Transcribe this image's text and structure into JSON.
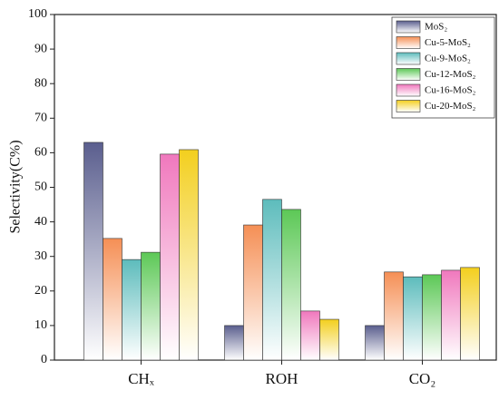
{
  "chart_data": {
    "type": "bar",
    "y_label": "Selectivity(C%)",
    "categories": [
      "CHₓ",
      "ROH",
      "CO₂"
    ],
    "series": [
      {
        "name": "MoS₂",
        "color": "#5a5e8e",
        "values": [
          63,
          10,
          10
        ]
      },
      {
        "name": "Cu-5-MoS₂",
        "color": "#f58f55",
        "values": [
          35.2,
          39.1,
          25.5
        ]
      },
      {
        "name": "Cu-9-MoS₂",
        "color": "#5dbcbc",
        "values": [
          29.1,
          46.5,
          24.1
        ]
      },
      {
        "name": "Cu-12-MoS₂",
        "color": "#5cc856",
        "values": [
          31.2,
          43.6,
          24.7
        ]
      },
      {
        "name": "Cu-16-MoS₂",
        "color": "#f078bd",
        "values": [
          59.6,
          14.2,
          26
        ]
      },
      {
        "name": "Cu-20-MoS₂",
        "color": "#f3cf1e",
        "values": [
          60.9,
          11.8,
          26.8
        ]
      }
    ],
    "ylim": [
      0,
      100
    ],
    "yticks": [
      0,
      10,
      20,
      30,
      40,
      50,
      60,
      70,
      80,
      90,
      100
    ],
    "legend": "upper right"
  }
}
